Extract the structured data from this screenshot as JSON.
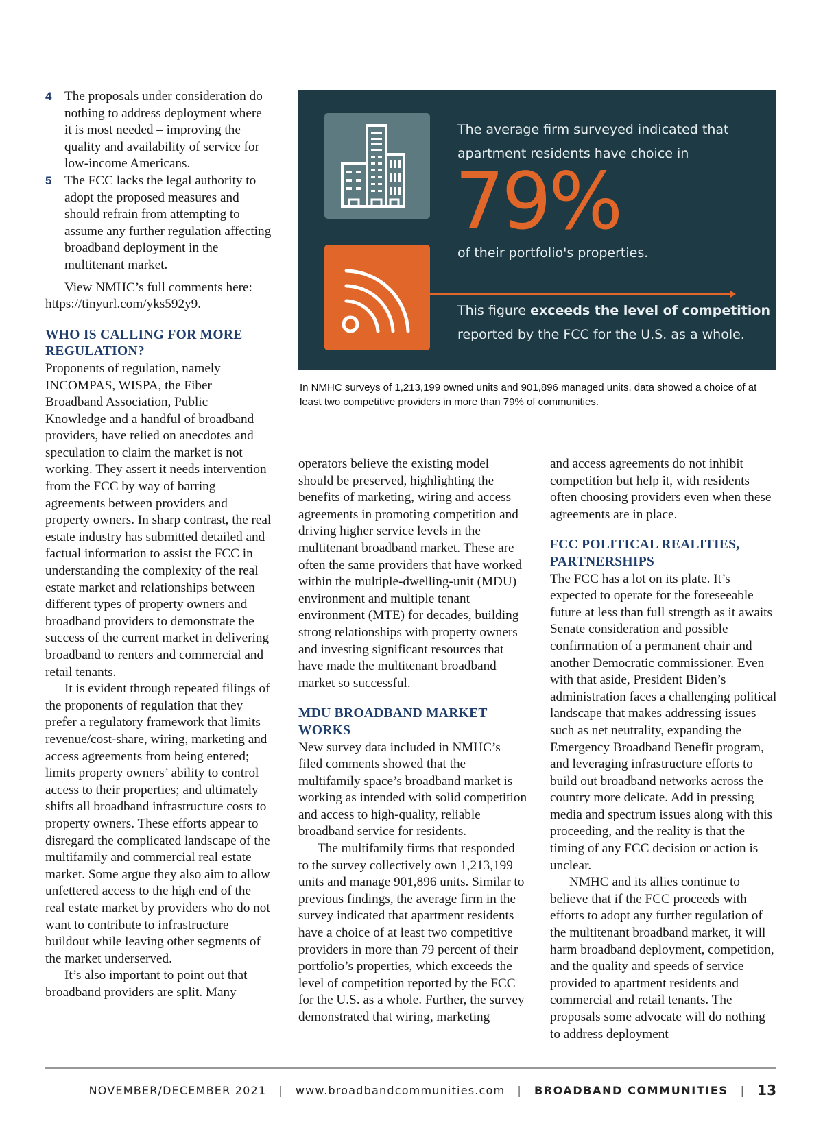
{
  "left_column": {
    "list_items": [
      {
        "num": "4",
        "text": "The proposals under consideration do nothing to address deployment where it is most needed – improving the quality and availability of service for low-income Americans."
      },
      {
        "num": "5",
        "text": "The FCC lacks the legal authority to adopt the proposed measures and should refrain from attempting to assume any further regulation affecting broadband deployment in the multitenant market."
      }
    ],
    "comments_para": "View NMHC’s full comments here: https://tinyurl.com/yks592y9.",
    "heading": "WHO IS CALLING FOR MORE REGULATION?",
    "paragraphs": [
      "Proponents of regulation, namely INCOMPAS, WISPA, the Fiber Broadband Association, Public Knowledge and a handful of broadband providers, have relied on anecdotes and speculation to claim the market is not working. They assert it needs intervention from the FCC by way of barring agreements between providers and property owners. In sharp contrast, the real estate industry has submitted detailed and factual information to assist the FCC in understanding the complexity of the real estate market and relationships between different types of property owners and broadband providers to demonstrate the success of the current market in delivering broadband to renters and commercial and retail tenants.",
      "It is evident through repeated filings of the proponents of regulation that they prefer a regulatory framework that limits revenue/cost-share, wiring, marketing and access agreements from being entered; limits property owners’ ability to control access to their properties; and ultimately shifts all broadband infrastructure costs to property owners. These efforts appear to disregard the complicated landscape of the multifamily and commercial real estate market. Some argue they also aim to allow unfettered access to the high end of the real estate market by providers who do not want to contribute to infrastructure buildout while leaving other segments of the market underserved.",
      "It’s also important to point out that broadband providers are split. Many"
    ]
  },
  "infographic": {
    "line1": "The average firm surveyed indicated that",
    "line2": "apartment residents have choice in",
    "big_figure": "79%",
    "line3": "of their portfolio's properties.",
    "line4_plain": "This figure ",
    "line4_bold": "exceeds the level of competition",
    "line5": "reported by the FCC for the U.S. as a whole.",
    "icons": [
      "building-icon",
      "wifi-signal-icon"
    ],
    "colors": {
      "background": "#1e3a44",
      "accent": "#e0662a",
      "building_box": "#5d7a80"
    },
    "caption": "In NMHC surveys of 1,213,199 owned units and 901,896 managed units, data showed a choice of at least two competitive providers in more than 79% of communities."
  },
  "middle_column": {
    "paragraphs_top": [
      "operators believe the existing model should be preserved, highlighting the benefits of marketing, wiring and access agreements in promoting competition and driving higher service levels in the multitenant broadband market. These are often the same providers that have worked within the multiple-dwelling-unit (MDU) environment and multiple tenant environment (MTE) for decades, building strong relationships with property owners and investing significant resources that have made the multitenant broadband market so successful."
    ],
    "heading": "MDU BROADBAND MARKET WORKS",
    "paragraphs": [
      "New survey data included in NMHC’s filed comments showed that the multifamily space’s broadband market is working as intended with solid competition and access to high-quality, reliable broadband service for residents.",
      "The multifamily firms that responded to the survey collectively own 1,213,199 units and manage 901,896 units. Similar to previous findings, the average firm in the survey indicated that apartment residents have a choice of at least two competitive providers in more than 79 percent of their portfolio’s properties, which exceeds the level of competition reported by the FCC for the U.S. as a whole. Further, the survey demonstrated that wiring, marketing"
    ]
  },
  "right_column": {
    "paragraphs_top": [
      "and access agreements do not inhibit competition but help it, with residents often choosing providers even when these agreements are in place."
    ],
    "heading": "FCC POLITICAL REALITIES, PARTNERSHIPS",
    "paragraphs": [
      "The FCC has a lot on its plate. It’s expected to operate for the foreseeable future at less than full strength as it awaits Senate consideration and possible confirmation of a permanent chair and another Democratic commissioner. Even with that aside, President Biden’s administration faces a challenging political landscape that makes addressing issues such as net neutrality, expanding the Emergency Broadband Benefit program, and leveraging infrastructure efforts to build out broadband networks across the country more delicate. Add in pressing media and spectrum issues along with this proceeding, and the reality is that the timing of any FCC decision or action is unclear.",
      "NMHC and its allies continue to believe that if the FCC proceeds with efforts to adopt any further regulation of the multitenant broadband market, it will harm broadband deployment, competition, and the quality and speeds of service provided to apartment residents and commercial and retail tenants. The proposals some advocate will do nothing to address deployment"
    ]
  },
  "footer": {
    "issue": "NOVEMBER/DECEMBER 2021",
    "url": "www.broadbandcommunities.com",
    "publication": "BROADBAND COMMUNITIES",
    "page_number": "13",
    "separator": "|"
  }
}
